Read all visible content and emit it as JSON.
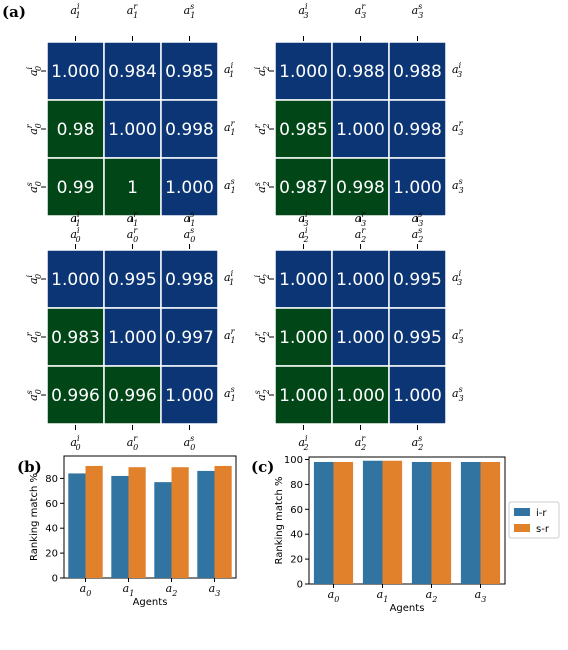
{
  "panel_labels": [
    "(a)",
    "(b)",
    "(c)"
  ],
  "colors": {
    "heat_high": "#0c3575",
    "heat_low": "#004617",
    "bar_ir": "#3274a1",
    "bar_sr": "#e1812c"
  },
  "chart_data": [
    {
      "type": "heatmap",
      "col_labels": [
        "a_1^i",
        "a_1^r",
        "a_1^s"
      ],
      "row_labels_left": [
        "a_0^i",
        "a_0^r",
        "a_0^s"
      ],
      "row_labels_right": [
        "a_1^i",
        "a_1^r",
        "a_1^s"
      ],
      "bottom_labels": [
        "a_0^i",
        "a_0^r",
        "a_0^s"
      ],
      "values": [
        [
          "1.000",
          "0.984",
          "0.985"
        ],
        [
          "0.98",
          "1.000",
          "0.998"
        ],
        [
          "0.99",
          "1",
          "1.000"
        ]
      ]
    },
    {
      "type": "heatmap",
      "col_labels": [
        "a_3^i",
        "a_3^r",
        "a_3^s"
      ],
      "row_labels_left": [
        "a_2^i",
        "a_2^r",
        "a_2^s"
      ],
      "row_labels_right": [
        "a_3^i",
        "a_3^r",
        "a_3^s"
      ],
      "bottom_labels": [
        "a_2^i",
        "a_2^r",
        "a_2^s"
      ],
      "values": [
        [
          "1.000",
          "0.988",
          "0.988"
        ],
        [
          "0.985",
          "1.000",
          "0.998"
        ],
        [
          "0.987",
          "0.998",
          "1.000"
        ]
      ]
    },
    {
      "type": "heatmap",
      "col_labels": [
        "a_1^i",
        "a_1^r",
        "a_1^s"
      ],
      "row_labels_left": [
        "a_0^i",
        "a_0^r",
        "a_0^s"
      ],
      "row_labels_right": [
        "a_1^i",
        "a_1^r",
        "a_1^s"
      ],
      "bottom_labels": [
        "a_0^i",
        "a_0^r",
        "a_0^s"
      ],
      "values": [
        [
          "1.000",
          "0.995",
          "0.998"
        ],
        [
          "0.983",
          "1.000",
          "0.997"
        ],
        [
          "0.996",
          "0.996",
          "1.000"
        ]
      ]
    },
    {
      "type": "heatmap",
      "col_labels": [
        "a_3^i",
        "a_3^r",
        "a_3^s"
      ],
      "row_labels_left": [
        "a_2^i",
        "a_2^r",
        "a_2^s"
      ],
      "row_labels_right": [
        "a_3^i",
        "a_3^r",
        "a_3^s"
      ],
      "bottom_labels": [
        "a_2^i",
        "a_2^r",
        "a_2^s"
      ],
      "values": [
        [
          "1.000",
          "1.000",
          "0.995"
        ],
        [
          "1.000",
          "1.000",
          "0.995"
        ],
        [
          "1.000",
          "1.000",
          "1.000"
        ]
      ]
    },
    {
      "type": "bar",
      "categories": [
        "a_0",
        "a_1",
        "a_2",
        "a_3"
      ],
      "series": [
        {
          "name": "i-r",
          "values": [
            84,
            82,
            77,
            86
          ]
        },
        {
          "name": "s-r",
          "values": [
            90,
            89,
            89,
            90
          ]
        }
      ],
      "xlabel": "Agents",
      "ylabel": "Ranking match %",
      "ylim": [
        0,
        98
      ],
      "yticks": [
        0,
        20,
        40,
        60,
        80
      ],
      "legend": "none",
      "grid": false
    },
    {
      "type": "bar",
      "categories": [
        "a_0",
        "a_1",
        "a_2",
        "a_3"
      ],
      "series": [
        {
          "name": "i-r",
          "values": [
            98,
            99,
            98,
            98
          ]
        },
        {
          "name": "s-r",
          "values": [
            98,
            99,
            98,
            98
          ]
        }
      ],
      "xlabel": "Agents",
      "ylabel": "Ranking match %",
      "ylim": [
        0,
        102
      ],
      "yticks": [
        0,
        20,
        40,
        60,
        80,
        100
      ],
      "legend": "right",
      "grid": false
    }
  ]
}
